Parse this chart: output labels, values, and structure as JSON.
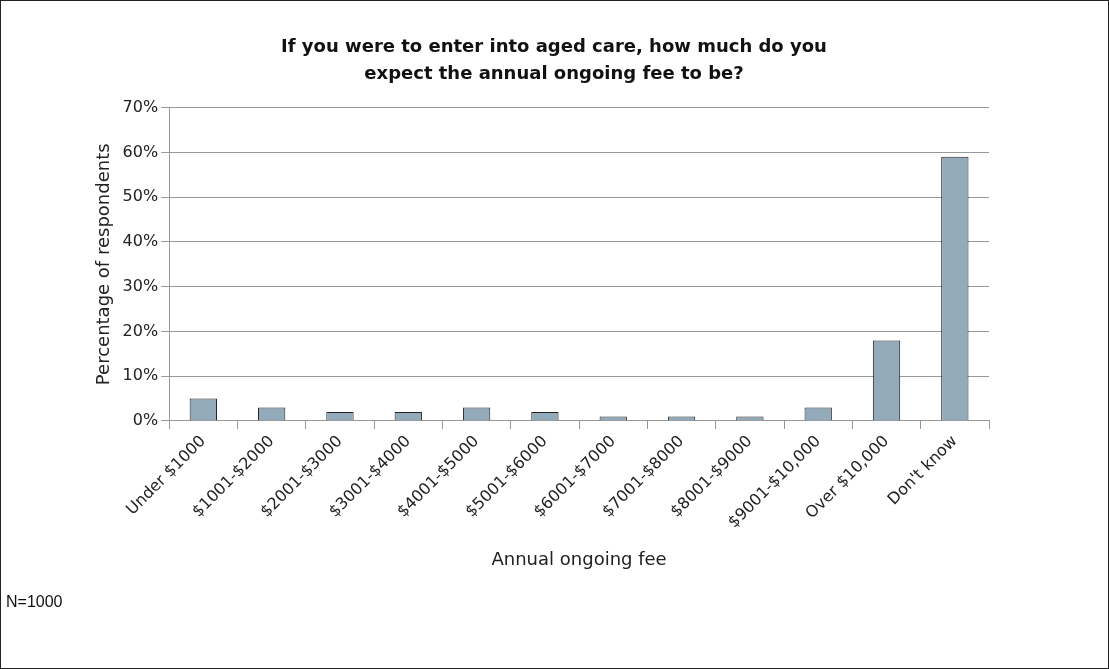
{
  "chart_data": {
    "type": "bar",
    "title": "If you were to enter into aged care, how much do you expect the annual ongoing fee to be?",
    "xlabel": "Annual ongoing fee",
    "ylabel": "Percentage of respondents",
    "categories": [
      "Under $1000",
      "$1001-$2000",
      "$2001-$3000",
      "$3001-$4000",
      "$4001-$5000",
      "$5001-$6000",
      "$6001-$7000",
      "$7001-$8000",
      "$8001-$9000",
      "$9001-$10,000",
      "Over $10,000",
      "Don't know"
    ],
    "values": [
      5,
      3,
      2,
      2,
      3,
      2,
      1,
      1,
      1,
      3,
      18,
      59
    ],
    "color": "#93aabb",
    "ylim": [
      0,
      70
    ],
    "yticks": [
      {
        "value": 0,
        "label": "0%"
      },
      {
        "value": 10,
        "label": "10%"
      },
      {
        "value": 20,
        "label": "20%"
      },
      {
        "value": 30,
        "label": "30%"
      },
      {
        "value": 40,
        "label": "40%"
      },
      {
        "value": 50,
        "label": "50%"
      },
      {
        "value": 60,
        "label": "60%"
      },
      {
        "value": 70,
        "label": "70%"
      }
    ],
    "grid": "y",
    "legend": false,
    "annotations": [
      "N=1000"
    ]
  }
}
